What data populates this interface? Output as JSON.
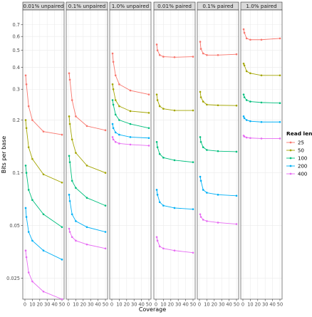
{
  "chart_data": {
    "type": "line",
    "xlabel": "Coverage",
    "ylabel": "Bits per base",
    "yscale": "log",
    "xlim": [
      0,
      50
    ],
    "ylim": [
      0.019,
      0.85
    ],
    "x_ticks": [
      0,
      10,
      20,
      30,
      40,
      50
    ],
    "y_ticks": [
      0.025,
      0.05,
      0.1,
      0.2,
      0.3,
      0.4,
      0.5,
      0.6,
      0.7
    ],
    "y_tick_labels": [
      "0.025",
      "0.05",
      "0.1",
      "0.2",
      "0.3",
      "0.4",
      "0.5",
      "0.6",
      "0.7"
    ],
    "grid": true,
    "legend": {
      "title": "Read length",
      "placement": "right",
      "entries": [
        {
          "name": "25",
          "color": "#F8766D"
        },
        {
          "name": "50",
          "color": "#A3A500"
        },
        {
          "name": "100",
          "color": "#00BF7D"
        },
        {
          "name": "200",
          "color": "#00B0F6"
        },
        {
          "name": "400",
          "color": "#E76BF3"
        }
      ]
    },
    "x": [
      1,
      2,
      5,
      10,
      25,
      50
    ],
    "panels": [
      {
        "label": "0.01% unpaired",
        "series": [
          {
            "name": "25",
            "values": [
              0.36,
              0.32,
              0.24,
              0.2,
              0.172,
              0.165
            ]
          },
          {
            "name": "50",
            "values": [
              0.2,
              0.18,
              0.14,
              0.12,
              0.098,
              0.088
            ]
          },
          {
            "name": "100",
            "values": [
              0.11,
              0.1,
              0.08,
              0.07,
              0.058,
              0.049
            ]
          },
          {
            "name": "200",
            "values": [
              0.063,
              0.056,
              0.046,
              0.041,
              0.036,
              0.032
            ]
          },
          {
            "name": "400",
            "values": [
              0.036,
              0.033,
              0.027,
              0.024,
              0.021,
              0.019
            ]
          }
        ]
      },
      {
        "label": "0.1% unpaired",
        "series": [
          {
            "name": "25",
            "values": [
              0.37,
              0.34,
              0.26,
              0.21,
              0.185,
              0.175
            ]
          },
          {
            "name": "50",
            "values": [
              0.21,
              0.19,
              0.155,
              0.13,
              0.11,
              0.1
            ]
          },
          {
            "name": "100",
            "values": [
              0.125,
              0.115,
              0.09,
              0.082,
              0.072,
              0.065
            ]
          },
          {
            "name": "200",
            "values": [
              0.075,
              0.069,
              0.058,
              0.053,
              0.049,
              0.046
            ]
          },
          {
            "name": "400",
            "values": [
              0.048,
              0.046,
              0.043,
              0.041,
              0.039,
              0.037
            ]
          }
        ]
      },
      {
        "label": "1.0% unpaired",
        "series": [
          {
            "name": "25",
            "values": [
              0.48,
              0.43,
              0.36,
              0.32,
              0.295,
              0.28
            ]
          },
          {
            "name": "50",
            "values": [
              0.32,
              0.3,
              0.26,
              0.24,
              0.225,
              0.22
            ]
          },
          {
            "name": "100",
            "values": [
              0.26,
              0.245,
              0.215,
              0.2,
              0.19,
              0.18
            ]
          },
          {
            "name": "200",
            "values": [
              0.19,
              0.18,
              0.17,
              0.165,
              0.16,
              0.158
            ]
          },
          {
            "name": "400",
            "values": [
              0.16,
              0.155,
              0.15,
              0.147,
              0.145,
              0.143
            ]
          }
        ]
      },
      {
        "label": "0.01% paired",
        "series": [
          {
            "name": "25",
            "values": [
              0.54,
              0.5,
              0.47,
              0.46,
              0.457,
              0.46
            ]
          },
          {
            "name": "50",
            "values": [
              0.28,
              0.26,
              0.24,
              0.232,
              0.227,
              0.227
            ]
          },
          {
            "name": "100",
            "values": [
              0.15,
              0.14,
              0.128,
              0.122,
              0.118,
              0.115
            ]
          },
          {
            "name": "200",
            "values": [
              0.08,
              0.075,
              0.068,
              0.065,
              0.063,
              0.062
            ]
          },
          {
            "name": "400",
            "values": [
              0.043,
              0.041,
              0.038,
              0.037,
              0.036,
              0.035
            ]
          }
        ]
      },
      {
        "label": "0.1% paired",
        "series": [
          {
            "name": "25",
            "values": [
              0.56,
              0.51,
              0.48,
              0.47,
              0.47,
              0.475
            ]
          },
          {
            "name": "50",
            "values": [
              0.29,
              0.27,
              0.255,
              0.245,
              0.243,
              0.242
            ]
          },
          {
            "name": "100",
            "values": [
              0.16,
              0.15,
              0.14,
              0.135,
              0.133,
              0.132
            ]
          },
          {
            "name": "200",
            "values": [
              0.095,
              0.09,
              0.08,
              0.077,
              0.075,
              0.074
            ]
          },
          {
            "name": "400",
            "values": [
              0.058,
              0.056,
              0.054,
              0.053,
              0.052,
              0.051
            ]
          }
        ]
      },
      {
        "label": "1.0% paired",
        "series": [
          {
            "name": "25",
            "values": [
              0.66,
              0.63,
              0.585,
              0.575,
              0.575,
              0.585
            ]
          },
          {
            "name": "50",
            "values": [
              0.42,
              0.41,
              0.38,
              0.37,
              0.36,
              0.36
            ]
          },
          {
            "name": "100",
            "values": [
              0.28,
              0.27,
              0.26,
              0.255,
              0.252,
              0.25
            ]
          },
          {
            "name": "200",
            "values": [
              0.21,
              0.205,
              0.2,
              0.197,
              0.195,
              0.195
            ]
          },
          {
            "name": "400",
            "values": [
              0.163,
              0.161,
              0.159,
              0.158,
              0.157,
              0.157
            ]
          }
        ]
      }
    ]
  }
}
